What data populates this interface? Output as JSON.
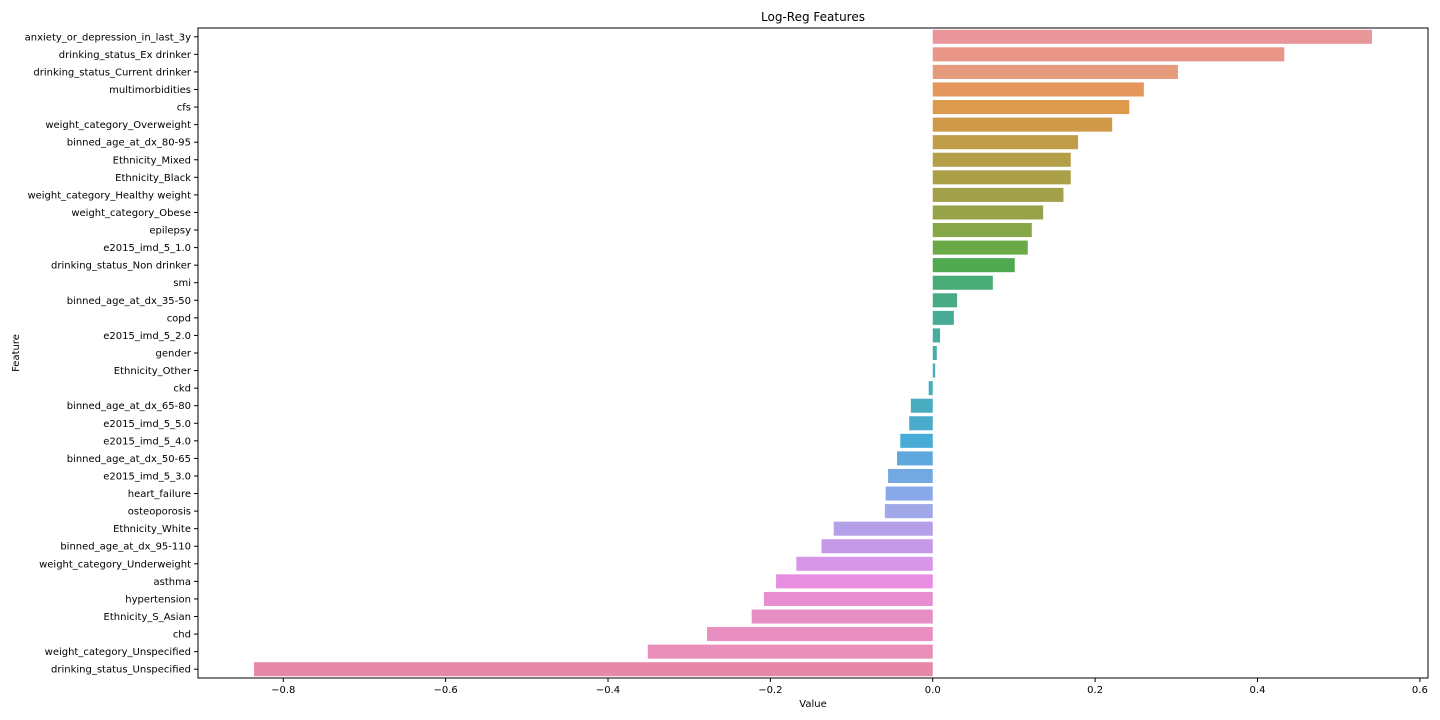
{
  "chart_data": {
    "type": "bar",
    "orientation": "horizontal",
    "title": "Log-Reg Features",
    "xlabel": "Value",
    "ylabel": "Feature",
    "xlim": [
      -0.905,
      0.61
    ],
    "xticks": [
      -0.8,
      -0.6,
      -0.4,
      -0.2,
      0.0,
      0.2,
      0.4,
      0.6
    ],
    "xtick_labels": [
      "−0.8",
      "−0.6",
      "−0.4",
      "−0.2",
      "0.0",
      "0.2",
      "0.4",
      "0.6"
    ],
    "grid": false,
    "categories": [
      "anxiety_or_depression_in_last_3y",
      "drinking_status_Ex drinker",
      "drinking_status_Current drinker",
      "multimorbidities",
      "cfs",
      "weight_category_Overweight",
      "binned_age_at_dx_80-95",
      "Ethnicity_Mixed",
      "Ethnicity_Black",
      "weight_category_Healthy weight",
      "weight_category_Obese",
      "epilepsy",
      "e2015_imd_5_1.0",
      "drinking_status_Non drinker",
      "smi",
      "binned_age_at_dx_35-50",
      "copd",
      "e2015_imd_5_2.0",
      "gender",
      "Ethnicity_Other",
      "ckd",
      "binned_age_at_dx_65-80",
      "e2015_imd_5_5.0",
      "e2015_imd_5_4.0",
      "binned_age_at_dx_50-65",
      "e2015_imd_5_3.0",
      "heart_failure",
      "osteoporosis",
      "Ethnicity_White",
      "binned_age_at_dx_95-110",
      "weight_category_Underweight",
      "asthma",
      "hypertension",
      "Ethnicity_S_Asian",
      "chd",
      "weight_category_Unspecified",
      "drinking_status_Unspecified"
    ],
    "values": [
      0.541,
      0.433,
      0.302,
      0.26,
      0.242,
      0.221,
      0.179,
      0.17,
      0.17,
      0.161,
      0.136,
      0.122,
      0.117,
      0.101,
      0.074,
      0.03,
      0.026,
      0.009,
      0.005,
      0.003,
      -0.005,
      -0.027,
      -0.029,
      -0.04,
      -0.044,
      -0.055,
      -0.058,
      -0.059,
      -0.122,
      -0.137,
      -0.168,
      -0.193,
      -0.208,
      -0.223,
      -0.278,
      -0.351,
      -0.836
    ],
    "colors": [
      "#e9969a",
      "#e99688",
      "#e59a7c",
      "#e4965c",
      "#dd9a4c",
      "#ce9a48",
      "#c09d48",
      "#b49f48",
      "#ab9f48",
      "#a2a048",
      "#95a248",
      "#87a648",
      "#6aa848",
      "#50a850",
      "#4aac76",
      "#48ab86",
      "#48ab93",
      "#48aca0",
      "#48aca8",
      "#48adb2",
      "#48adb8",
      "#48acbf",
      "#48acca",
      "#48acd6",
      "#5ea8dd",
      "#74a8e0",
      "#88a8e8",
      "#a0a8e8",
      "#b4a0e8",
      "#c49ae8",
      "#d896e8",
      "#e88ee0",
      "#e68ed0",
      "#e68ec4",
      "#e88ec0",
      "#e88eb8",
      "#e888a8"
    ]
  }
}
